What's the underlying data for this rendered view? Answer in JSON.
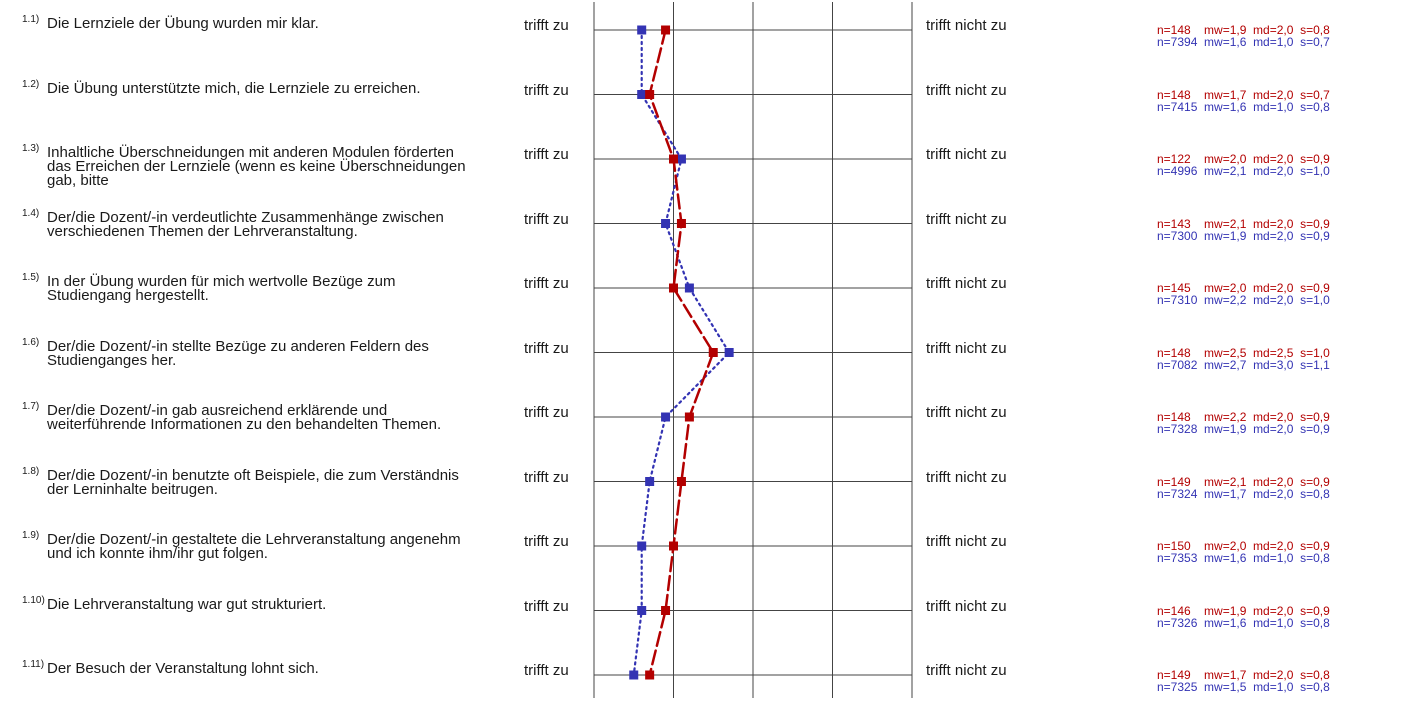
{
  "colors": {
    "series1": "#b30000",
    "series2": "#3333b3",
    "grid": "#444444"
  },
  "left_label": "trifft zu",
  "right_label": "trifft nicht zu",
  "questions": [
    {
      "num": "1.1)",
      "text": "Die Lernziele der Übung wurden mir klar.",
      "stat1": "n=148    mw=1,9  md=2,0  s=0,8",
      "stat2": "n=7394  mw=1,6  md=1,0  s=0,7"
    },
    {
      "num": "1.2)",
      "text": "Die Übung unterstützte mich, die Lernziele zu erreichen.",
      "stat1": "n=148    mw=1,7  md=2,0  s=0,7",
      "stat2": "n=7415  mw=1,6  md=1,0  s=0,8"
    },
    {
      "num": "1.3)",
      "text": "Inhaltliche Überschneidungen mit anderen Modulen förderten das Erreichen der Lernziele (wenn es keine Überschneidungen gab, bitte",
      "stat1": "n=122    mw=2,0  md=2,0  s=0,9",
      "stat2": "n=4996  mw=2,1  md=2,0  s=1,0"
    },
    {
      "num": "1.4)",
      "text": "Der/die Dozent/-in verdeutlichte Zusammenhänge zwischen verschiedenen Themen der Lehrveranstaltung.",
      "stat1": "n=143    mw=2,1  md=2,0  s=0,9",
      "stat2": "n=7300  mw=1,9  md=2,0  s=0,9"
    },
    {
      "num": "1.5)",
      "text": "In der Übung wurden für mich wertvolle Bezüge zum Studiengang hergestellt.",
      "stat1": "n=145    mw=2,0  md=2,0  s=0,9",
      "stat2": "n=7310  mw=2,2  md=2,0  s=1,0"
    },
    {
      "num": "1.6)",
      "text": "Der/die Dozent/-in stellte Bezüge zu anderen Feldern des Studienganges her.",
      "stat1": "n=148    mw=2,5  md=2,5  s=1,0",
      "stat2": "n=7082  mw=2,7  md=3,0  s=1,1"
    },
    {
      "num": "1.7)",
      "text": "Der/die Dozent/-in gab ausreichend erklärende und weiterführende Informationen zu den behandelten Themen.",
      "stat1": "n=148    mw=2,2  md=2,0  s=0,9",
      "stat2": "n=7328  mw=1,9  md=2,0  s=0,9"
    },
    {
      "num": "1.8)",
      "text": "Der/die Dozent/-in benutzte oft Beispiele, die zum Verständnis der Lerninhalte beitrugen.",
      "stat1": "n=149    mw=2,1  md=2,0  s=0,9",
      "stat2": "n=7324  mw=1,7  md=2,0  s=0,8"
    },
    {
      "num": "1.9)",
      "text": "Der/die Dozent/-in gestaltete die Lehrveranstaltung angenehm und ich konnte ihm/ihr gut folgen.",
      "stat1": "n=150    mw=2,0  md=2,0  s=0,9",
      "stat2": "n=7353  mw=1,6  md=1,0  s=0,8"
    },
    {
      "num": "1.10)",
      "text": "Die Lehrveranstaltung war gut strukturiert.",
      "stat1": "n=146    mw=1,9  md=2,0  s=0,9",
      "stat2": "n=7326  mw=1,6  md=1,0  s=0,8"
    },
    {
      "num": "1.11)",
      "text": "Der Besuch der Veranstaltung lohnt sich.",
      "stat1": "n=149    mw=1,7  md=2,0  s=0,8",
      "stat2": "n=7325  mw=1,5  md=1,0  s=0,8"
    }
  ],
  "chart_data": {
    "type": "line",
    "scale": [
      1,
      5
    ],
    "categories": [
      "1.1)",
      "1.2)",
      "1.3)",
      "1.4)",
      "1.5)",
      "1.6)",
      "1.7)",
      "1.8)",
      "1.9)",
      "1.10)",
      "1.11)"
    ],
    "series": [
      {
        "values": [
          1.9,
          1.7,
          2.0,
          2.1,
          2.0,
          2.5,
          2.2,
          2.1,
          2.0,
          1.9,
          1.7
        ],
        "style": "dashed"
      },
      {
        "values": [
          1.6,
          1.6,
          2.1,
          1.9,
          2.2,
          2.7,
          1.9,
          1.7,
          1.6,
          1.6,
          1.5
        ],
        "style": "dotted"
      }
    ]
  }
}
